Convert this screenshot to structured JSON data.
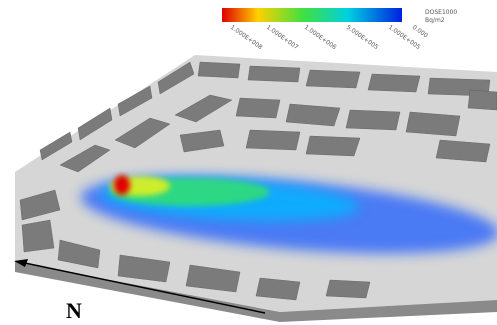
{
  "legend": {
    "labels": [
      "1.000E+008",
      "1.000E+007",
      "1.000E+006",
      "5.000E+005",
      "1.000E+005",
      "0.000"
    ],
    "title": "DOSE1000",
    "unit": "Bq/m2"
  },
  "compass": {
    "label": "N"
  }
}
